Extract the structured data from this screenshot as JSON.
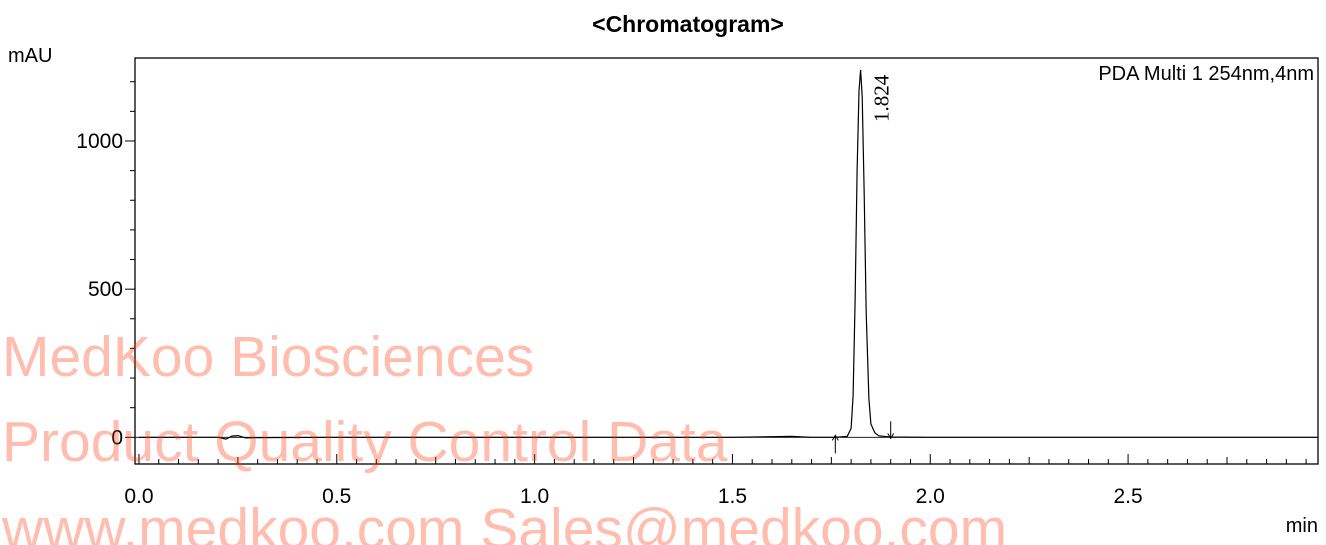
{
  "chart_data": {
    "type": "line",
    "title": "<Chromatogram>",
    "xlabel": "min",
    "ylabel": "mAU",
    "xlim": [
      -0.01,
      2.98
    ],
    "ylim": [
      -90,
      1280
    ],
    "x_ticks": [
      0.0,
      0.5,
      1.0,
      1.5,
      2.0,
      2.5
    ],
    "x_tick_labels": [
      "0.0",
      "0.5",
      "1.0",
      "1.5",
      "2.0",
      "2.5"
    ],
    "y_ticks": [
      0,
      500,
      1000
    ],
    "y_tick_labels": [
      "0",
      "500",
      "1000"
    ],
    "grid": false,
    "legend": {
      "text": "PDA Multi 1 254nm,4nm",
      "position": "top-right"
    },
    "series": [
      {
        "name": "PDA Multi 1 254nm,4nm",
        "color": "#000000",
        "x": [
          0.0,
          0.2,
          0.21,
          0.22,
          0.235,
          0.25,
          0.27,
          0.3,
          0.5,
          1.0,
          1.5,
          1.65,
          1.7,
          1.76,
          1.79,
          1.8,
          1.805,
          1.81,
          1.815,
          1.82,
          1.824,
          1.828,
          1.833,
          1.838,
          1.845,
          1.85,
          1.86,
          1.87,
          1.9,
          2.0,
          2.5,
          2.98
        ],
        "y": [
          0,
          0,
          -3,
          -6,
          4,
          6,
          -2,
          -1,
          0,
          0,
          0,
          3,
          0,
          0,
          3,
          30,
          140,
          460,
          900,
          1170,
          1240,
          1150,
          820,
          420,
          130,
          45,
          15,
          5,
          1,
          0,
          0,
          0
        ]
      }
    ],
    "peaks": [
      {
        "rt": 1.824,
        "label": "1.824",
        "start": 1.76,
        "end": 1.9
      }
    ]
  },
  "watermark": {
    "lines": [
      "MedKoo Biosciences",
      "Product Quality Control Data",
      "www.medkoo.com    Sales@medkoo.com"
    ],
    "color": "#ff3b10"
  }
}
